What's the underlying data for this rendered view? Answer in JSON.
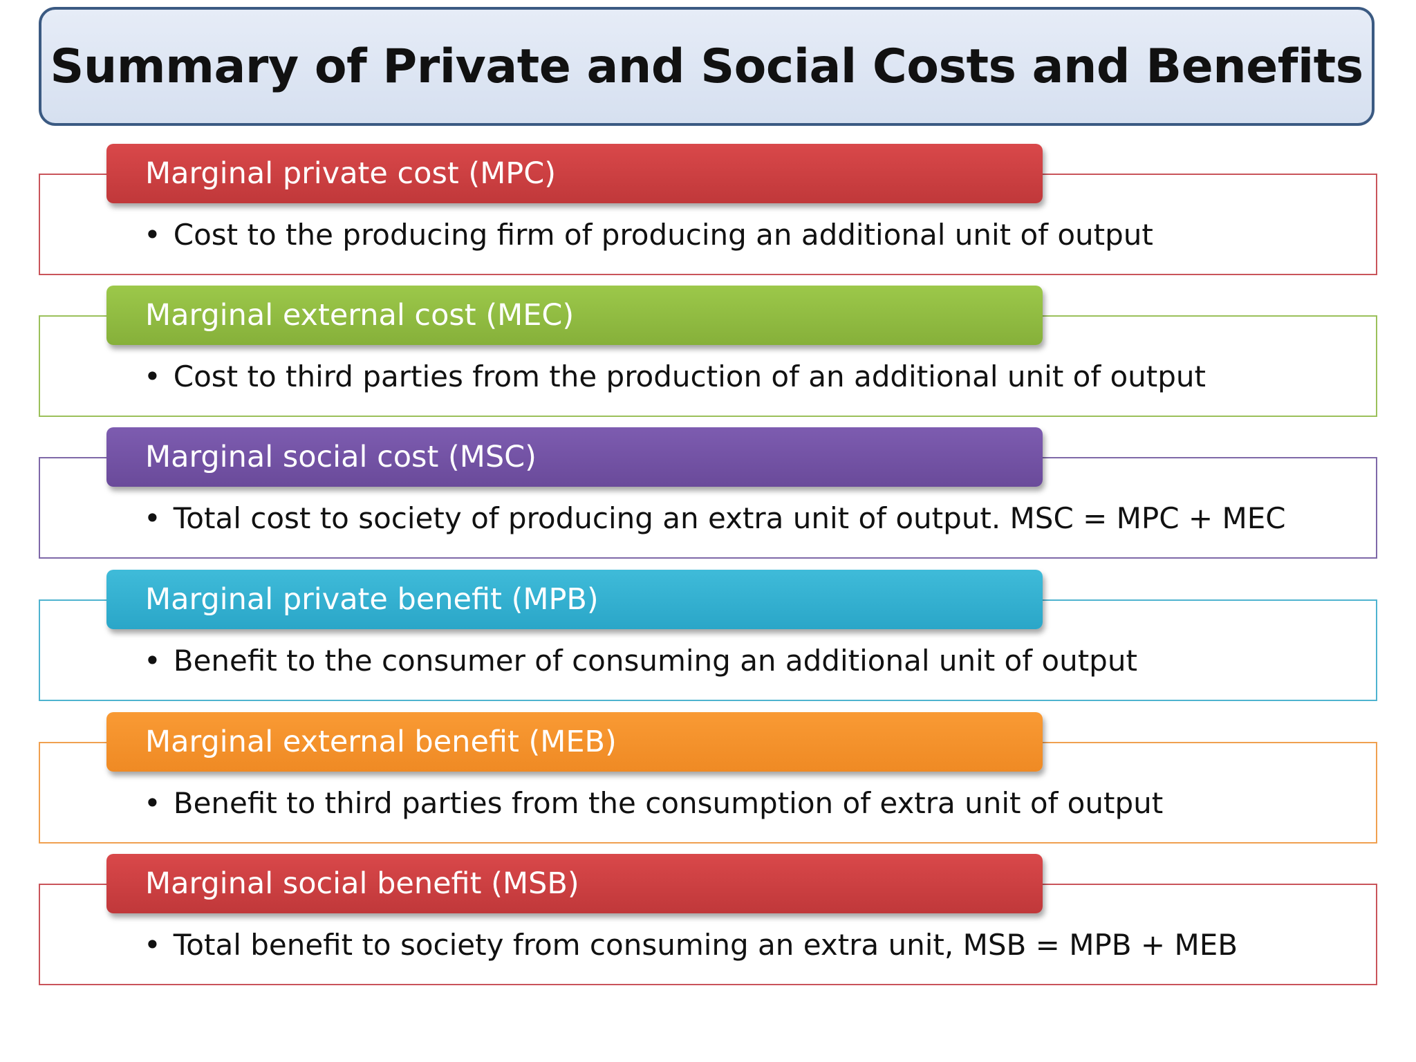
{
  "title": "Summary of Private and Social Costs and Benefits",
  "items": [
    {
      "label": "Marginal private cost (MPC)",
      "description": "Cost to the producing firm of producing an additional unit of output",
      "color": "#c0383a",
      "color_top": "#d9484a",
      "border_color": "#c9545a"
    },
    {
      "label": "Marginal external cost (MEC)",
      "description": "Cost to third parties from the production of an additional unit of output",
      "color": "#86b03a",
      "color_top": "#9cc84a",
      "border_color": "#9bc05a"
    },
    {
      "label": "Marginal social cost (MSC)",
      "description": "Total cost to society of producing an extra unit of output. MSC = MPC + MEC",
      "color": "#6a4a9a",
      "color_top": "#7d5cb0",
      "border_color": "#7e68a8"
    },
    {
      "label": "Marginal private benefit (MPB)",
      "description": "Benefit to the consumer of consuming an additional unit of output",
      "color": "#2aa6c8",
      "color_top": "#3fbbd9",
      "border_color": "#4eb3cf"
    },
    {
      "label": "Marginal external benefit (MEB)",
      "description": "Benefit to third parties from the consumption of extra unit of output",
      "color": "#ef8a24",
      "color_top": "#f99a34",
      "border_color": "#f0a050"
    },
    {
      "label": "Marginal social benefit (MSB)",
      "description": "Total benefit to society from consuming an extra unit, MSB = MPB + MEB",
      "color": "#c0383a",
      "color_top": "#d9484a",
      "border_color": "#c9545a"
    }
  ]
}
